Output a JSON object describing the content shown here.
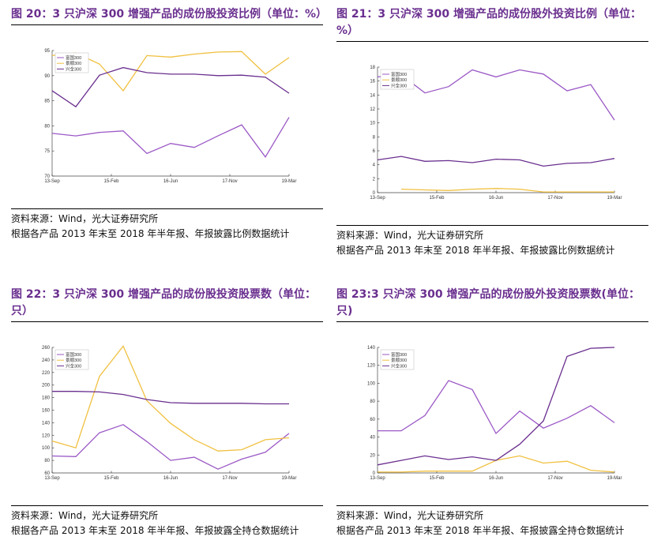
{
  "panels": [
    {
      "title": "图 20：3 只沪深 300 增强产品的成份股投资比例（单位：%）",
      "source_line1": "资料来源：Wind，光大证券研究所",
      "source_line2": "根据各产品 2013 年末至 2018 年半年报、年报披露比例数据统计"
    },
    {
      "title": "图 21：3 只沪深 300 增强产品的成份股外投资比例（单位：%）",
      "source_line1": "资料来源：Wind，光大证券研究所",
      "source_line2": "根据各产品 2013 年末至 2018 年半年报、年报披露比例数据统计"
    },
    {
      "title": "图 22：3 只沪深 300 增强产品的成份股投资股票数（单位：只）",
      "source_line1": "资料来源：Wind，光大证券研究所",
      "source_line2": "根据各产品 2013 年末至 2018 年半年报、年报披露全持仓数据统计"
    },
    {
      "title": "图 23:3 只沪深 300 增强产品的成份股外投资股票数(单位：只)",
      "source_line1": "资料来源：Wind，光大证券研究所",
      "source_line2": "根据各产品 2013 年末至 2018 年半年报、年报披露全持仓数据统计"
    }
  ],
  "colors": {
    "fuguo": "#9b59c6",
    "jingshun": "#f0c040",
    "xingquan": "#6a2f8f"
  },
  "chart_data": [
    {
      "type": "line",
      "x_ticks": [
        "13-Sep",
        "15-Feb",
        "16-Jun",
        "17-Nov",
        "19-Mar"
      ],
      "ylim": [
        70,
        95
      ],
      "y_ticks": [
        70,
        75,
        80,
        85,
        90,
        95
      ],
      "legend_position": "top-left",
      "series": [
        {
          "name": "富国300",
          "values": [
            78.5,
            78,
            78.7,
            79,
            74.5,
            76.5,
            75.7,
            78,
            80.2,
            73.8,
            81.7
          ]
        },
        {
          "name": "景顺300",
          "values": [
            94,
            94.5,
            92.3,
            87,
            94,
            93.7,
            94.3,
            94.7,
            94.8,
            90.3,
            93.6
          ]
        },
        {
          "name": "兴全300",
          "values": [
            87,
            83.8,
            90.1,
            91.6,
            90.6,
            90.3,
            90.3,
            90,
            90.1,
            89.7,
            86.5
          ]
        }
      ]
    },
    {
      "type": "line",
      "x_ticks": [
        "13-Sep",
        "15-Feb",
        "16-Jun",
        "17-Nov",
        "19-Mar"
      ],
      "ylim": [
        0,
        18
      ],
      "y_ticks": [
        0,
        2,
        4,
        6,
        8,
        10,
        12,
        14,
        16,
        18
      ],
      "legend_position": "top-left",
      "series": [
        {
          "name": "富国300",
          "values": [
            16.6,
            16.9,
            14.3,
            15.2,
            17.6,
            16.6,
            17.6,
            17,
            14.6,
            15.5,
            10.4
          ]
        },
        {
          "name": "景顺300",
          "values": [
            null,
            0.5,
            0.4,
            0.3,
            0.5,
            0.6,
            0.5,
            0.1,
            0.1,
            0.1,
            0.1
          ]
        },
        {
          "name": "兴全300",
          "values": [
            4.7,
            5.2,
            4.5,
            4.6,
            4.3,
            4.8,
            4.7,
            3.8,
            4.2,
            4.3,
            4.9
          ]
        }
      ]
    },
    {
      "type": "line",
      "x_ticks": [
        "13-Sep",
        "15-Feb",
        "16-Jun",
        "17-Nov",
        "19-Mar"
      ],
      "ylim": [
        60,
        260
      ],
      "y_ticks": [
        60,
        80,
        100,
        120,
        140,
        160,
        180,
        200,
        220,
        240,
        260
      ],
      "legend_position": "top-left",
      "series": [
        {
          "name": "富国300",
          "values": [
            87,
            86,
            124,
            137,
            110,
            80,
            85,
            66,
            82,
            93,
            123
          ]
        },
        {
          "name": "景顺300",
          "values": [
            111,
            100,
            214,
            262,
            175,
            139,
            113,
            95,
            97,
            113,
            116
          ]
        },
        {
          "name": "兴全300",
          "values": [
            190,
            190,
            189,
            185,
            177,
            172,
            171,
            171,
            171,
            170,
            170
          ]
        }
      ]
    },
    {
      "type": "line",
      "x_ticks": [
        "13-Sep",
        "15-Feb",
        "16-Jun",
        "17-Nov",
        "19-Mar"
      ],
      "ylim": [
        0,
        140
      ],
      "y_ticks": [
        0,
        20,
        40,
        60,
        80,
        100,
        120,
        140
      ],
      "legend_position": "top-left",
      "series": [
        {
          "name": "富国300",
          "values": [
            47,
            47,
            64,
            103,
            93,
            44,
            69,
            50,
            61,
            75,
            56
          ]
        },
        {
          "name": "景顺300",
          "values": [
            1,
            1,
            2,
            2,
            2,
            14,
            19,
            11,
            13,
            3,
            1
          ]
        },
        {
          "name": "兴全300",
          "values": [
            9,
            14,
            19,
            15,
            18,
            14,
            32,
            58,
            130,
            139,
            140
          ]
        }
      ]
    }
  ]
}
